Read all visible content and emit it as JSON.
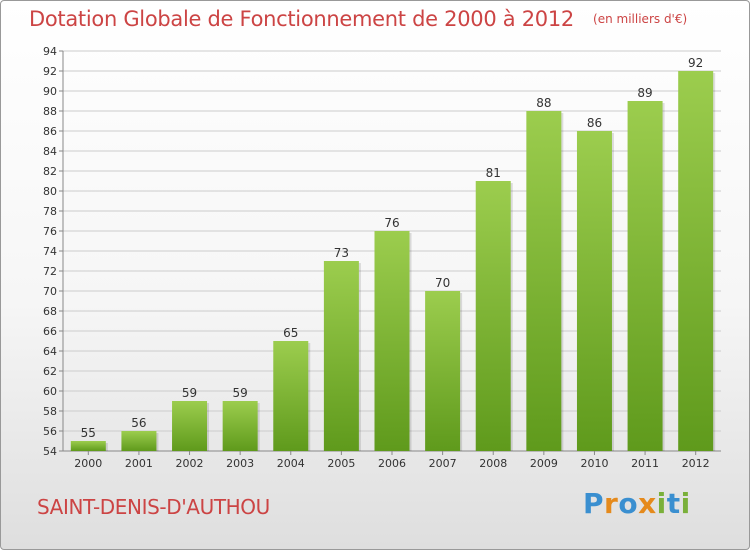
{
  "title": "Dotation Globale de Fonctionnement de 2000 à 2012",
  "unit": "(en milliers d'€)",
  "commune": "SAINT-DENIS-D'AUTHOU",
  "logo": {
    "text": "Proxiti",
    "letters": [
      "P",
      "r",
      "o",
      "x",
      "i",
      "t",
      "i"
    ]
  },
  "colors": {
    "bar_top": "#9ccd4e",
    "bar_bottom": "#5f9a1c",
    "title": "#cc4444",
    "grid": "#cccccc",
    "axis_text": "#333333"
  },
  "chart_data": {
    "type": "bar",
    "categories": [
      "2000",
      "2001",
      "2002",
      "2003",
      "2004",
      "2005",
      "2006",
      "2007",
      "2008",
      "2009",
      "2010",
      "2011",
      "2012"
    ],
    "values": [
      55,
      56,
      59,
      59,
      65,
      73,
      76,
      70,
      81,
      88,
      86,
      89,
      92
    ],
    "data_labels": [
      "55",
      "56",
      "59",
      "59",
      "65",
      "73",
      "76",
      "70",
      "81",
      "88",
      "86",
      "89",
      "92"
    ],
    "ylim": [
      54,
      94
    ],
    "yticks": [
      "54",
      "56",
      "58",
      "60",
      "62",
      "64",
      "66",
      "68",
      "70",
      "72",
      "74",
      "76",
      "78",
      "80",
      "82",
      "84",
      "86",
      "88",
      "90",
      "92",
      "94"
    ],
    "grid": true,
    "legend": "none",
    "xlabel": "",
    "ylabel": ""
  }
}
